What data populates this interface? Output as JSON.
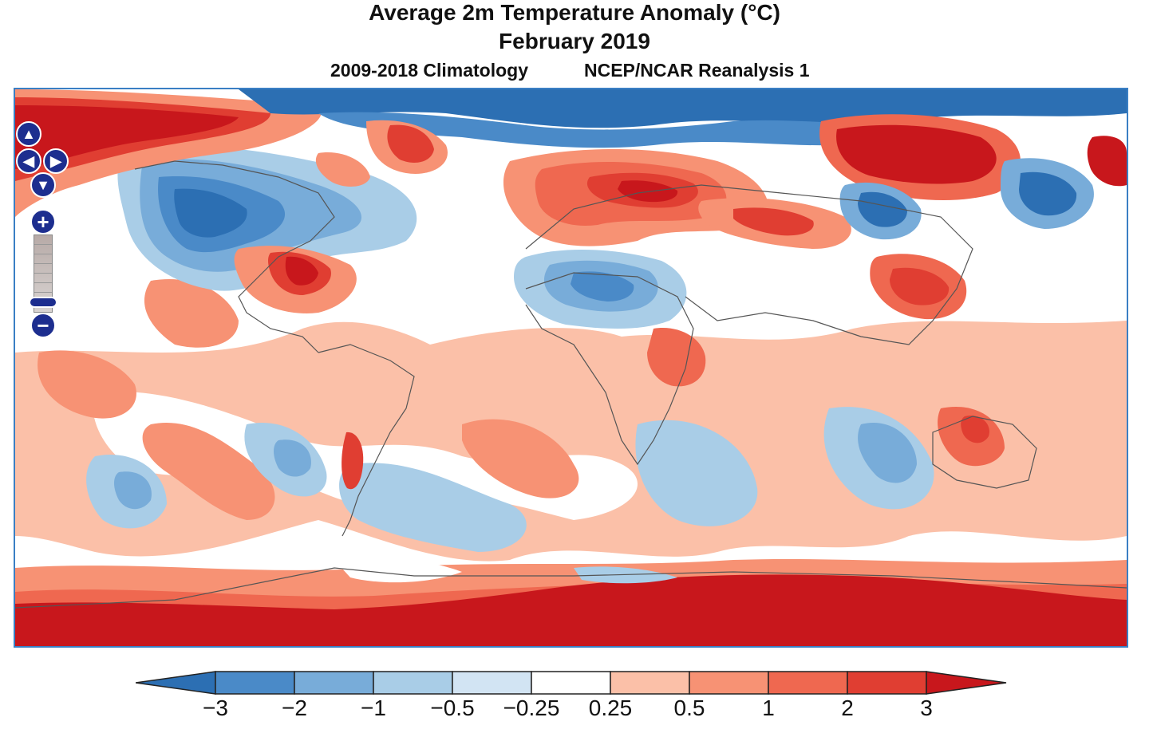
{
  "header": {
    "title": "Average 2m Temperature Anomaly (°C)",
    "subtitle": "February 2019",
    "left_note": "2009-2018 Climatology",
    "right_note": "NCEP/NCAR Reanalysis 1"
  },
  "controls": {
    "pan_up": "▲",
    "pan_left": "◀",
    "pan_right": "▶",
    "pan_down": "▼",
    "zoom_in": "+",
    "zoom_out": "−"
  },
  "legend": {
    "ticks": [
      "−3",
      "−2",
      "−1",
      "−0.5",
      "−0.25",
      "0.25",
      "0.5",
      "1",
      "2",
      "3"
    ],
    "colors": [
      "#2c6fb3",
      "#4a8ac8",
      "#78acd9",
      "#a9cde7",
      "#d2e4f3",
      "#ffffff",
      "#fbc0a8",
      "#f79274",
      "#ef6850",
      "#e03e32",
      "#c8171c"
    ]
  }
}
